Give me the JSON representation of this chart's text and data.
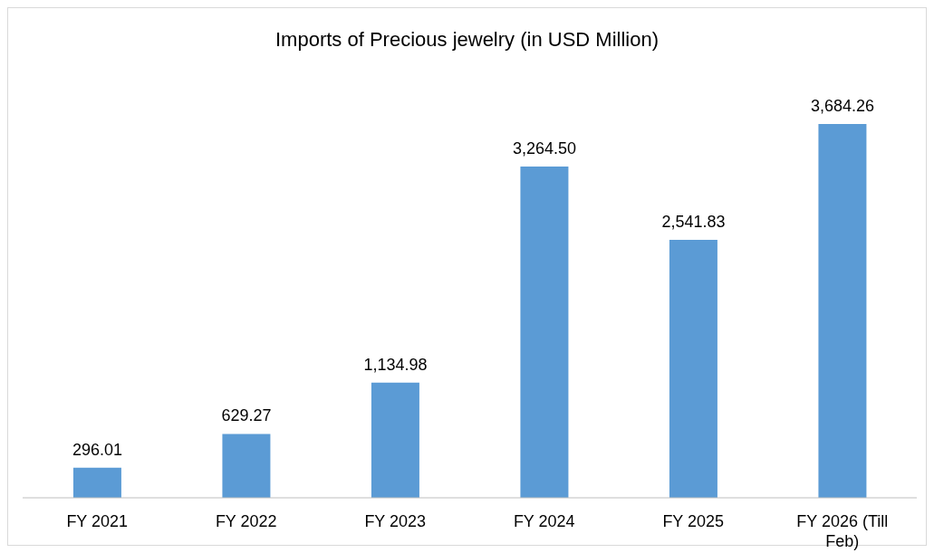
{
  "chart_data": {
    "type": "bar",
    "title": "Imports of Precious jewelry (in USD Million)",
    "categories": [
      "FY 2021",
      "FY 2022",
      "FY 2023",
      "FY 2024",
      "FY 2025",
      "FY 2026 (Till Feb)"
    ],
    "values": [
      296.01,
      629.27,
      1134.98,
      3264.5,
      2541.83,
      3684.26
    ],
    "color": "#5b9bd5",
    "value_labels": [
      "296.01",
      "629.27",
      "1,134.98",
      "3,264.50",
      "2,541.83",
      "3,684.26"
    ],
    "grid": false,
    "legend": false
  }
}
